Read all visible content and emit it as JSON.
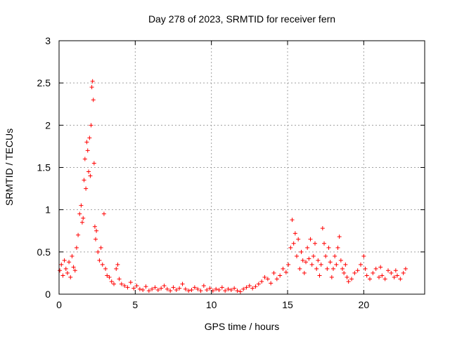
{
  "chart_data": {
    "type": "scatter",
    "title": "Day 278 of 2023, SRMTID for receiver fern",
    "xlabel": "GPS time / hours",
    "ylabel": "SRMTID / TECUs",
    "xlim": [
      0,
      24
    ],
    "ylim": [
      0,
      3
    ],
    "xticks": [
      0,
      5,
      10,
      15,
      20
    ],
    "yticks": [
      0,
      0.5,
      1,
      1.5,
      2,
      2.5,
      3
    ],
    "xtick_labels": [
      "0",
      "5",
      "10",
      "15",
      "20"
    ],
    "ytick_labels": [
      "0",
      "0.5",
      "1",
      "1.5",
      "2",
      "2.5",
      "3"
    ],
    "grid": true,
    "marker": "+",
    "color": "#ff0000",
    "series": [
      {
        "name": "SRMTID",
        "x": [
          0.05,
          0.15,
          0.25,
          0.35,
          0.45,
          0.55,
          0.65,
          0.75,
          0.85,
          0.95,
          1.05,
          1.15,
          1.25,
          1.35,
          1.45,
          1.52,
          1.58,
          1.64,
          1.7,
          1.76,
          1.82,
          1.88,
          1.94,
          2.0,
          2.05,
          2.1,
          2.15,
          2.2,
          2.25,
          2.3,
          2.35,
          2.4,
          2.45,
          2.55,
          2.65,
          2.75,
          2.85,
          2.95,
          3.05,
          3.15,
          3.3,
          3.45,
          3.6,
          3.75,
          3.85,
          3.95,
          4.1,
          4.3,
          4.5,
          4.7,
          4.9,
          5.1,
          5.3,
          5.5,
          5.7,
          5.9,
          6.1,
          6.3,
          6.5,
          6.7,
          6.9,
          7.1,
          7.3,
          7.5,
          7.7,
          7.9,
          8.1,
          8.3,
          8.5,
          8.7,
          8.9,
          9.1,
          9.3,
          9.5,
          9.7,
          9.9,
          10.1,
          10.3,
          10.5,
          10.7,
          10.9,
          11.1,
          11.3,
          11.5,
          11.7,
          11.9,
          12.1,
          12.3,
          12.5,
          12.7,
          12.9,
          13.1,
          13.3,
          13.5,
          13.7,
          13.9,
          14.1,
          14.3,
          14.5,
          14.7,
          14.9,
          15.05,
          15.2,
          15.3,
          15.4,
          15.5,
          15.6,
          15.7,
          15.8,
          15.9,
          16.0,
          16.1,
          16.2,
          16.3,
          16.4,
          16.5,
          16.6,
          16.7,
          16.8,
          16.9,
          17.0,
          17.1,
          17.2,
          17.3,
          17.4,
          17.5,
          17.6,
          17.7,
          17.8,
          17.9,
          18.0,
          18.1,
          18.2,
          18.3,
          18.4,
          18.5,
          18.6,
          18.7,
          18.8,
          18.9,
          19.0,
          19.2,
          19.4,
          19.6,
          19.8,
          20.0,
          20.1,
          20.2,
          20.4,
          20.6,
          20.8,
          21.0,
          21.1,
          21.2,
          21.4,
          21.6,
          21.8,
          22.0,
          22.1,
          22.2,
          22.4,
          22.6,
          22.75
        ],
        "y": [
          0.28,
          0.35,
          0.22,
          0.4,
          0.3,
          0.25,
          0.38,
          0.2,
          0.45,
          0.32,
          0.28,
          0.55,
          0.7,
          0.95,
          1.05,
          0.85,
          0.9,
          1.35,
          1.6,
          1.25,
          1.8,
          1.7,
          1.45,
          1.85,
          1.4,
          2.0,
          2.45,
          2.52,
          2.3,
          1.55,
          0.8,
          0.65,
          0.75,
          0.5,
          0.4,
          0.55,
          0.35,
          0.95,
          0.3,
          0.22,
          0.2,
          0.15,
          0.12,
          0.3,
          0.35,
          0.18,
          0.12,
          0.1,
          0.08,
          0.14,
          0.07,
          0.1,
          0.06,
          0.05,
          0.09,
          0.04,
          0.06,
          0.08,
          0.05,
          0.07,
          0.1,
          0.06,
          0.04,
          0.08,
          0.05,
          0.07,
          0.12,
          0.06,
          0.04,
          0.05,
          0.08,
          0.06,
          0.04,
          0.1,
          0.05,
          0.07,
          0.04,
          0.06,
          0.05,
          0.08,
          0.04,
          0.06,
          0.05,
          0.07,
          0.04,
          0.03,
          0.06,
          0.08,
          0.1,
          0.07,
          0.09,
          0.12,
          0.15,
          0.2,
          0.18,
          0.13,
          0.25,
          0.18,
          0.22,
          0.3,
          0.26,
          0.35,
          0.55,
          0.88,
          0.6,
          0.72,
          0.45,
          0.65,
          0.3,
          0.5,
          0.4,
          0.25,
          0.38,
          0.55,
          0.42,
          0.65,
          0.35,
          0.45,
          0.6,
          0.3,
          0.4,
          0.22,
          0.35,
          0.78,
          0.6,
          0.45,
          0.3,
          0.55,
          0.38,
          0.2,
          0.3,
          0.45,
          0.35,
          0.55,
          0.68,
          0.4,
          0.3,
          0.25,
          0.35,
          0.2,
          0.15,
          0.18,
          0.25,
          0.28,
          0.35,
          0.45,
          0.3,
          0.22,
          0.18,
          0.25,
          0.3,
          0.2,
          0.32,
          0.22,
          0.18,
          0.28,
          0.25,
          0.2,
          0.28,
          0.22,
          0.18,
          0.25,
          0.3
        ]
      }
    ]
  }
}
